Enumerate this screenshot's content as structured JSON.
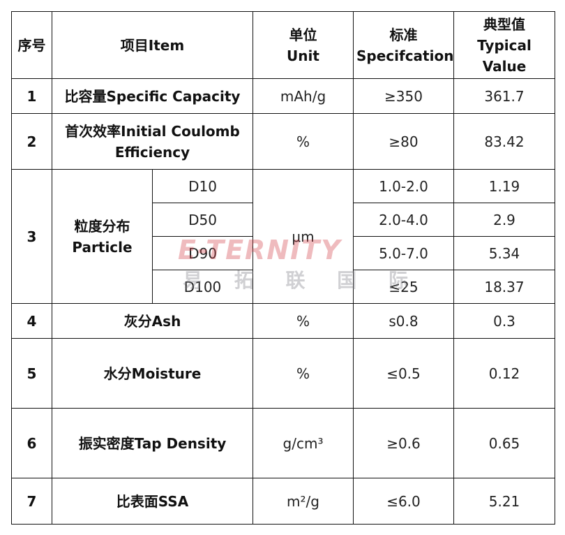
{
  "table": {
    "header": [
      "序号",
      "项目Item",
      "单位\nUnit",
      "标准\nSpecifcation",
      "典型值\nTypical\nValue"
    ],
    "rows": [
      {
        "no": "1",
        "item": "比容量Specific Capacity",
        "unit": "mAh/g",
        "spec": "≥350",
        "value": "361.7"
      },
      {
        "no": "2",
        "item": "首次效率Initial Coulomb\nEfficiency",
        "unit": "%",
        "spec": "≥80",
        "value": "83.42"
      },
      {
        "no": "3",
        "item": "粒度分布\nParticle",
        "unit": "μm",
        "sub": [
          {
            "name": "D10",
            "spec": "1.0-2.0",
            "value": "1.19"
          },
          {
            "name": "D50",
            "spec": "2.0-4.0",
            "value": "2.9"
          },
          {
            "name": "D90",
            "spec": "5.0-7.0",
            "value": "5.34"
          },
          {
            "name": "D100",
            "spec": "≤25",
            "value": "18.37"
          }
        ]
      },
      {
        "no": "4",
        "item": "灰分Ash",
        "unit": "%",
        "spec": "s0.8",
        "value": "0.3"
      },
      {
        "no": "5",
        "item": "水分Moisture",
        "unit": "%",
        "spec": "≤0.5",
        "value": "0.12"
      },
      {
        "no": "6",
        "item": "振实密度Tap Density",
        "unit": "g/cm³",
        "spec": "≥0.6",
        "value": "0.65"
      },
      {
        "no": "7",
        "item": "比表面SSA",
        "unit": "m²/g",
        "spec": "≤6.0",
        "value": "5.21"
      }
    ]
  },
  "watermark": {
    "logo": "E-TERNITY",
    "chinese": "易 拓 联 国 际"
  }
}
